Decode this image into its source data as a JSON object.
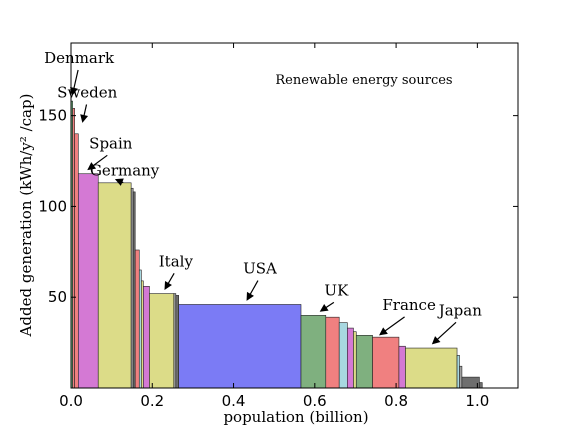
{
  "chart_data": {
    "type": "bar",
    "title": "Renewable energy sources",
    "xlabel": "population (billion)",
    "ylabel": "Added generation (kWh/y² /cap)",
    "xlim": [
      0,
      1.1
    ],
    "ylim": [
      0,
      190
    ],
    "xticks": [
      "0.0",
      "0.2",
      "0.4",
      "0.6",
      "0.8",
      "1.0"
    ],
    "xtick_values": [
      0,
      0.2,
      0.4,
      0.6,
      0.8,
      1.0
    ],
    "yticks": [
      "50",
      "100",
      "150"
    ],
    "ytick_values": [
      50,
      100,
      150
    ],
    "grid": false,
    "bars": [
      {
        "x0": 0.0,
        "x1": 0.004,
        "y": 158,
        "color": "#7fc98f"
      },
      {
        "x0": 0.004,
        "x1": 0.009,
        "y": 154,
        "color": "#f08080"
      },
      {
        "x0": 0.009,
        "x1": 0.018,
        "y": 140,
        "color": "#f08080"
      },
      {
        "x0": 0.018,
        "x1": 0.067,
        "y": 118,
        "color": "#d479d4"
      },
      {
        "x0": 0.067,
        "x1": 0.148,
        "y": 113,
        "color": "#dcdc88"
      },
      {
        "x0": 0.148,
        "x1": 0.153,
        "y": 110,
        "color": "#a0a0a0"
      },
      {
        "x0": 0.153,
        "x1": 0.158,
        "y": 108,
        "color": "#6e6e6e"
      },
      {
        "x0": 0.158,
        "x1": 0.168,
        "y": 76,
        "color": "#f08080"
      },
      {
        "x0": 0.168,
        "x1": 0.173,
        "y": 65,
        "color": "#a8d8e0"
      },
      {
        "x0": 0.173,
        "x1": 0.178,
        "y": 59,
        "color": "#dcdc88"
      },
      {
        "x0": 0.178,
        "x1": 0.193,
        "y": 56,
        "color": "#d479d4"
      },
      {
        "x0": 0.193,
        "x1": 0.253,
        "y": 52,
        "color": "#dcdc88"
      },
      {
        "x0": 0.253,
        "x1": 0.258,
        "y": 52,
        "color": "#a0a0a0"
      },
      {
        "x0": 0.258,
        "x1": 0.265,
        "y": 51,
        "color": "#6e6e6e"
      },
      {
        "x0": 0.265,
        "x1": 0.566,
        "y": 46,
        "color": "#7b7bf5"
      },
      {
        "x0": 0.566,
        "x1": 0.627,
        "y": 40,
        "color": "#7fb07f"
      },
      {
        "x0": 0.627,
        "x1": 0.66,
        "y": 39,
        "color": "#f08080"
      },
      {
        "x0": 0.66,
        "x1": 0.68,
        "y": 36,
        "color": "#a8d8e0"
      },
      {
        "x0": 0.68,
        "x1": 0.695,
        "y": 33,
        "color": "#d479d4"
      },
      {
        "x0": 0.695,
        "x1": 0.702,
        "y": 31,
        "color": "#dcdc88"
      },
      {
        "x0": 0.702,
        "x1": 0.742,
        "y": 29,
        "color": "#7fb07f"
      },
      {
        "x0": 0.742,
        "x1": 0.807,
        "y": 28,
        "color": "#f08080"
      },
      {
        "x0": 0.807,
        "x1": 0.823,
        "y": 23,
        "color": "#d479d4"
      },
      {
        "x0": 0.823,
        "x1": 0.95,
        "y": 22,
        "color": "#dcdc88"
      },
      {
        "x0": 0.95,
        "x1": 0.956,
        "y": 18,
        "color": "#a8d8e0"
      },
      {
        "x0": 0.956,
        "x1": 0.962,
        "y": 12,
        "color": "#a0a0a0"
      },
      {
        "x0": 0.962,
        "x1": 1.005,
        "y": 6,
        "color": "#6e6e6e"
      },
      {
        "x0": 1.005,
        "x1": 1.012,
        "y": 3,
        "color": "#6e6e6e"
      }
    ],
    "annotations": [
      {
        "text": "Denmark",
        "tx": 0.02,
        "ty": 179,
        "ax": 0.003,
        "ay": 161
      },
      {
        "text": "Sweden",
        "tx": 0.04,
        "ty": 160,
        "ax": 0.028,
        "ay": 146
      },
      {
        "text": "Spain",
        "tx": 0.098,
        "ty": 132,
        "ax": 0.04,
        "ay": 120
      },
      {
        "text": "Germany",
        "tx": 0.132,
        "ty": 117,
        "ax": 0.108,
        "ay": 115
      },
      {
        "text": "Italy",
        "tx": 0.258,
        "ty": 67,
        "ax": 0.23,
        "ay": 54
      },
      {
        "text": "USA",
        "tx": 0.465,
        "ty": 63,
        "ax": 0.432,
        "ay": 48
      },
      {
        "text": "UK",
        "tx": 0.653,
        "ty": 51,
        "ax": 0.612,
        "ay": 42
      },
      {
        "text": "France",
        "tx": 0.832,
        "ty": 43,
        "ax": 0.758,
        "ay": 29
      },
      {
        "text": "Japan",
        "tx": 0.958,
        "ty": 40,
        "ax": 0.888,
        "ay": 24
      }
    ]
  }
}
